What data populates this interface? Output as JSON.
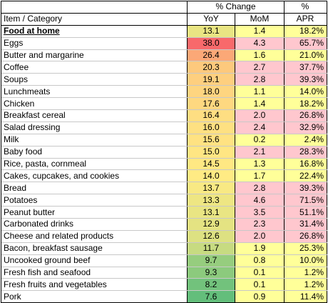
{
  "header": {
    "pct_change_label": "% Change",
    "pct_label": "%",
    "item_label": "Item / Category",
    "yoy_label": "YoY",
    "mom_label": "MoM",
    "apr_label": "APR"
  },
  "colors": {
    "mom_high": "#ffc7ce",
    "mom_low": "#ffff99",
    "yoy_scale_high": "#f8696b",
    "yoy_scale_mid": "#ffeb84",
    "yoy_scale_low": "#63be7b"
  },
  "rows": [
    {
      "item": "Food at home",
      "yoy": "13.1",
      "mom": "1.4",
      "apr": "18.2%",
      "bold": true
    },
    {
      "item": "Eggs",
      "yoy": "38.0",
      "mom": "4.3",
      "apr": "65.7%"
    },
    {
      "item": "Butter and margarine",
      "yoy": "26.4",
      "mom": "1.6",
      "apr": "21.0%"
    },
    {
      "item": "Coffee",
      "yoy": "20.3",
      "mom": "2.7",
      "apr": "37.7%"
    },
    {
      "item": "Soups",
      "yoy": "19.1",
      "mom": "2.8",
      "apr": "39.3%"
    },
    {
      "item": "Lunchmeats",
      "yoy": "18.0",
      "mom": "1.1",
      "apr": "14.0%"
    },
    {
      "item": "Chicken",
      "yoy": "17.6",
      "mom": "1.4",
      "apr": "18.2%"
    },
    {
      "item": "Breakfast cereal",
      "yoy": "16.4",
      "mom": "2.0",
      "apr": "26.8%"
    },
    {
      "item": "Salad dressing",
      "yoy": "16.0",
      "mom": "2.4",
      "apr": "32.9%"
    },
    {
      "item": "Milk",
      "yoy": "15.6",
      "mom": "0.2",
      "apr": "2.4%"
    },
    {
      "item": "Baby food",
      "yoy": "15.0",
      "mom": "2.1",
      "apr": "28.3%"
    },
    {
      "item": "Rice, pasta, cornmeal",
      "yoy": "14.5",
      "mom": "1.3",
      "apr": "16.8%"
    },
    {
      "item": "Cakes, cupcakes, and cookies",
      "yoy": "14.0",
      "mom": "1.7",
      "apr": "22.4%"
    },
    {
      "item": "Bread",
      "yoy": "13.7",
      "mom": "2.8",
      "apr": "39.3%"
    },
    {
      "item": "Potatoes",
      "yoy": "13.3",
      "mom": "4.6",
      "apr": "71.5%"
    },
    {
      "item": "Peanut butter",
      "yoy": "13.1",
      "mom": "3.5",
      "apr": "51.1%"
    },
    {
      "item": "Carbonated drinks",
      "yoy": "12.9",
      "mom": "2.3",
      "apr": "31.4%"
    },
    {
      "item": "Cheese and related products",
      "yoy": "12.6",
      "mom": "2.0",
      "apr": "26.8%"
    },
    {
      "item": "Bacon, breakfast sausage",
      "yoy": "11.7",
      "mom": "1.9",
      "apr": "25.3%"
    },
    {
      "item": "Uncooked ground beef",
      "yoy": "9.7",
      "mom": "0.8",
      "apr": "10.0%"
    },
    {
      "item": "Fresh fish and seafood",
      "yoy": "9.3",
      "mom": "0.1",
      "apr": "1.2%"
    },
    {
      "item": "Fresh fruits and vegetables",
      "yoy": "8.2",
      "mom": "0.1",
      "apr": "1.2%"
    },
    {
      "item": "Pork",
      "yoy": "7.6",
      "mom": "0.9",
      "apr": "11.4%"
    }
  ]
}
